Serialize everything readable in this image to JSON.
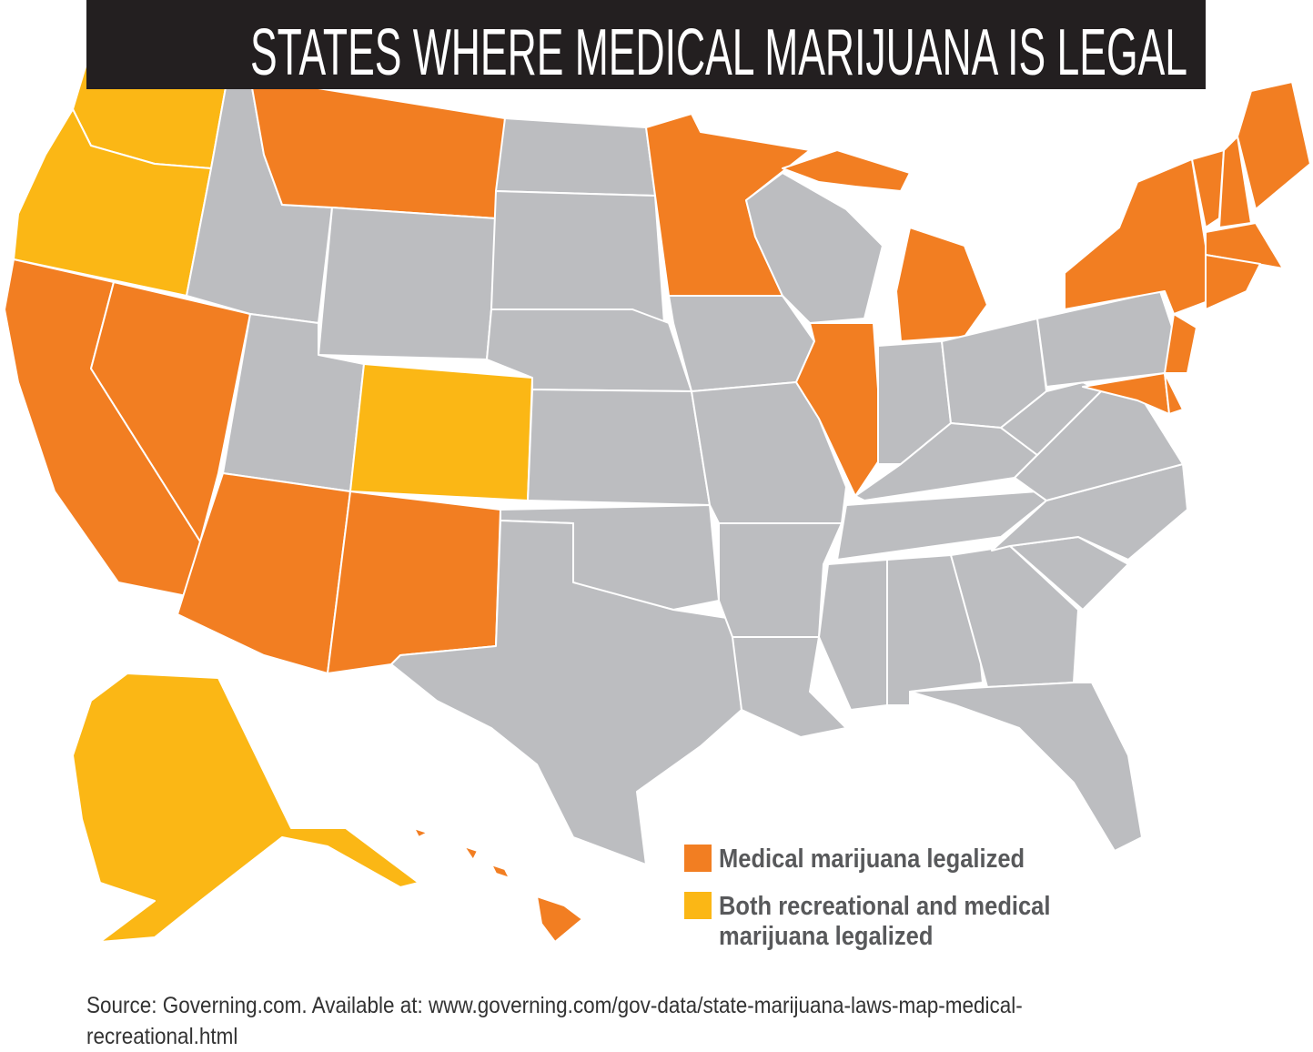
{
  "header": {
    "title": "STATES WHERE MEDICAL MARIJUANA IS LEGAL"
  },
  "legend": [
    {
      "label": "Medical marijuana legalized"
    },
    {
      "label": "Both recreational and medical marijuana legalized"
    }
  ],
  "source": "Source: Governing.com. Available at: www.governing.com/gov-data/state-marijuana-laws-map-medical-recreational.html"
}
